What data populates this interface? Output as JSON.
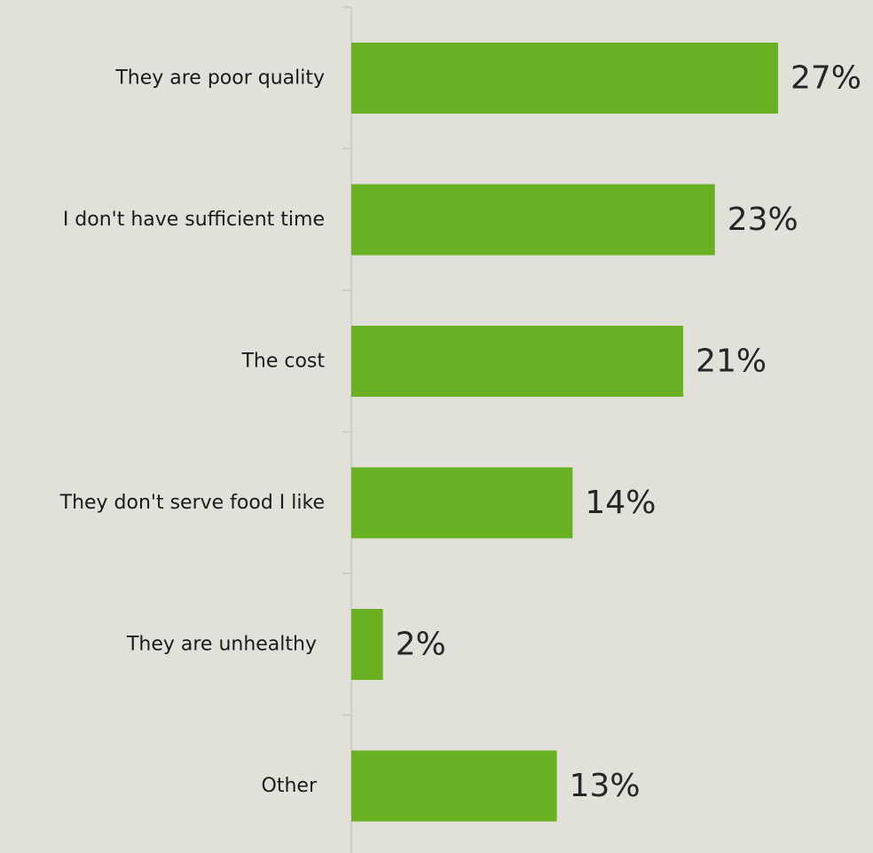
{
  "chart_data": {
    "type": "bar",
    "orientation": "horizontal",
    "categories": [
      "They are poor quality",
      "I don't have sufficient time",
      "The cost",
      "They don't serve food I like",
      "They are unhealthy",
      "Other"
    ],
    "values": [
      27,
      23,
      21,
      14,
      2,
      13
    ],
    "value_labels": [
      "27%",
      "23%",
      "21%",
      "14%",
      "2%",
      "13%"
    ],
    "unit": "%",
    "xlim": [
      0,
      27
    ],
    "grid": false,
    "legend": "none",
    "colors": {
      "bar": "#6ab023",
      "background": "#e1e1da",
      "axis": "#c8c8c2",
      "category_text": "#1a1a1a",
      "value_text": "#262626"
    }
  }
}
